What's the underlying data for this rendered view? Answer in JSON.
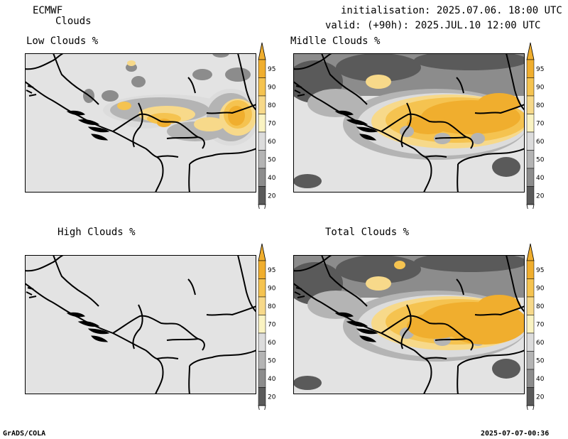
{
  "header": {
    "model": "ECMWF",
    "product": "Clouds",
    "init_line": "initialisation: 2025.07.06. 18:00 UTC",
    "valid_line": "valid: (+90h): 2025.JUL.10 12:00 UTC"
  },
  "panels": [
    {
      "id": "low",
      "title": "Low Clouds %"
    },
    {
      "id": "middle",
      "title": "Midlle Clouds %"
    },
    {
      "id": "high",
      "title": "High Clouds %"
    },
    {
      "id": "total",
      "title": "Total Clouds %"
    }
  ],
  "colorbar": {
    "ticks": [
      "95",
      "90",
      "80",
      "70",
      "60",
      "50",
      "40",
      "20"
    ],
    "colors": [
      "#f0ae2e",
      "#f5c350",
      "#f7d98a",
      "#faf3c2",
      "#dcdcdc",
      "#b4b4b4",
      "#8c8c8c",
      "#5a5a5a"
    ]
  },
  "footer": {
    "left": "GrADS/COLA",
    "right": "2025-07-07-00:36"
  },
  "colors": {
    "land": "#e3e3e3",
    "border": "#000000"
  }
}
